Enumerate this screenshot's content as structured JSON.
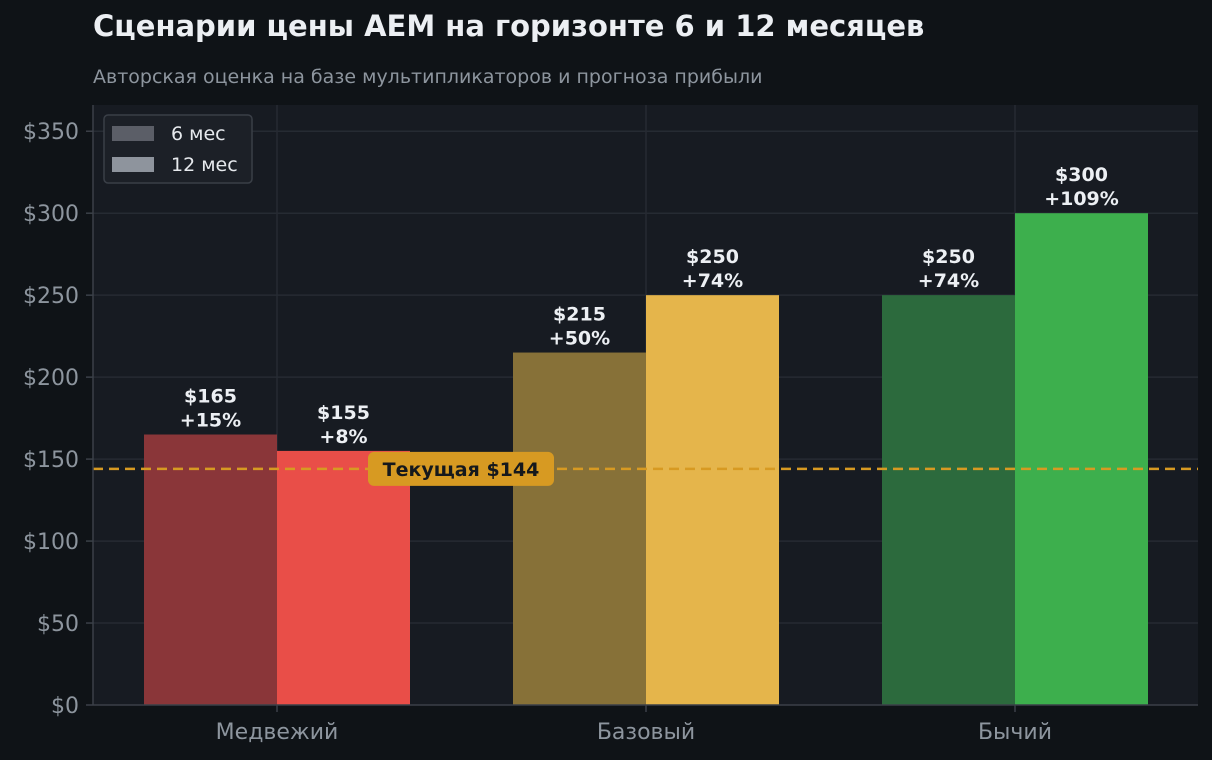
{
  "chart_data": {
    "type": "bar",
    "title": "Сценарии цены AEM на горизонте 6 и 12 месяцев",
    "subtitle": "Авторская оценка на базе мультипликаторов и прогноза прибыли",
    "categories": [
      "Медвежий",
      "Базовый",
      "Бычий"
    ],
    "series": [
      {
        "name": "6 мес",
        "values": [
          165,
          215,
          250
        ],
        "labels": [
          [
            "$165",
            "+15%"
          ],
          [
            "$215",
            "+50%"
          ],
          [
            "$250",
            "+74%"
          ]
        ]
      },
      {
        "name": "12 мес",
        "values": [
          155,
          250,
          300
        ],
        "labels": [
          [
            "$155",
            "+8%"
          ],
          [
            "$250",
            "+74%"
          ],
          [
            "$300",
            "+109%"
          ]
        ]
      }
    ],
    "bar_colors": [
      [
        "#8a3639",
        "#e94e48"
      ],
      [
        "#877138",
        "#e5b54b"
      ],
      [
        "#2c6a3d",
        "#3daf4d"
      ]
    ],
    "legend_colors": [
      "#5b5e67",
      "#8e949d"
    ],
    "yticks": [
      0,
      50,
      100,
      150,
      200,
      250,
      300,
      350
    ],
    "ytick_labels": [
      "$0",
      "$50",
      "$100",
      "$150",
      "$200",
      "$250",
      "$300",
      "$350"
    ],
    "ylim": [
      0,
      366
    ],
    "reference": {
      "value": 144,
      "label": "Текущая $144",
      "color": "#d79a22"
    },
    "legend_position": "top-left",
    "grid": true
  }
}
